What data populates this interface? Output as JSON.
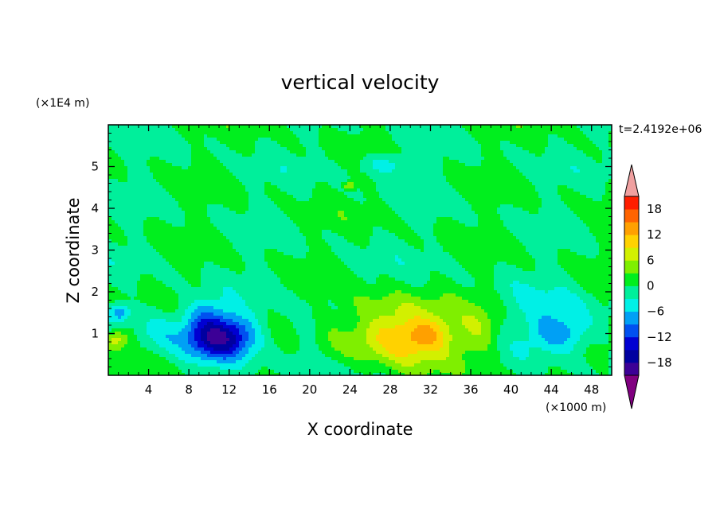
{
  "chart_data": {
    "type": "heatmap",
    "title": "vertical velocity",
    "xlabel": "X coordinate",
    "ylabel": "Z coordinate",
    "x_unit": "(×1000 m)",
    "y_unit": "(×1E4 m)",
    "time_label": "t=2.4192e+06",
    "xlim": [
      0,
      50
    ],
    "ylim": [
      0,
      6
    ],
    "x_ticks": [
      4,
      8,
      12,
      16,
      20,
      24,
      28,
      32,
      36,
      40,
      44,
      48
    ],
    "y_ticks": [
      1,
      2,
      3,
      4,
      5
    ],
    "colorbar": {
      "levels": [
        -21,
        -18,
        -15,
        -12,
        -9,
        -6,
        -3,
        0,
        3,
        6,
        9,
        12,
        15,
        18,
        21
      ],
      "tick_labels": [
        18,
        12,
        6,
        0,
        -6,
        -12,
        -18
      ],
      "colors": [
        "#800080",
        "#3c0096",
        "#0000a0",
        "#0000d2",
        "#0050f0",
        "#00a0f5",
        "#00f0e6",
        "#00ef9b",
        "#00ef1e",
        "#7fef00",
        "#d2f000",
        "#ffd200",
        "#ffa000",
        "#ff6400",
        "#ff1e00",
        "#f0a0a0"
      ],
      "extend": "both"
    },
    "features": [
      {
        "x": 10.5,
        "z": 0.9,
        "value": -16,
        "note": "downdraft core"
      },
      {
        "x": 1.5,
        "z": 1.45,
        "value": -7
      },
      {
        "x": 1.0,
        "z": 0.85,
        "value": 7
      },
      {
        "x": 29.5,
        "z": 0.85,
        "value": 13,
        "note": "updraft core"
      },
      {
        "x": 45.5,
        "z": 0.95,
        "value": -7
      },
      {
        "x": 27.0,
        "z": 5.05,
        "value": -4
      }
    ]
  }
}
